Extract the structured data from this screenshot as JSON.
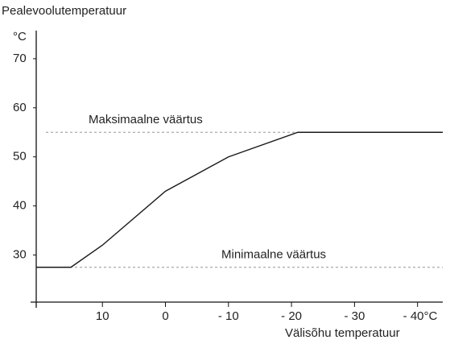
{
  "chart_data": {
    "type": "line",
    "title": "Pealevoolutemperatuur",
    "y_unit": "°C",
    "x_label": "Välisõhu temperatuur",
    "x": [
      20.5,
      15,
      10,
      0,
      -10,
      -21,
      -44
    ],
    "series": [
      {
        "color": "#1a1a1a",
        "values": [
          27.5,
          27.5,
          32,
          43,
          50,
          55,
          55
        ]
      }
    ],
    "xlim": [
      20.5,
      -44
    ],
    "xticks": [
      10,
      0,
      {
        "value": -10,
        "label": "- 10"
      },
      {
        "value": -20,
        "label": "- 20"
      },
      {
        "value": -30,
        "label": "- 30"
      },
      {
        "value": -40,
        "label": "- 40°C"
      }
    ],
    "ylim": [
      20.4,
      75.4
    ],
    "yticks": [
      30,
      40,
      50,
      60,
      70
    ],
    "reference_lines": [
      {
        "label": "Maksimaalne väärtus",
        "value": 55,
        "color": "#aaaaaa"
      },
      {
        "label": "Minimaalne väärtus",
        "value": 27.5,
        "color": "#aaaaaa"
      }
    ]
  }
}
